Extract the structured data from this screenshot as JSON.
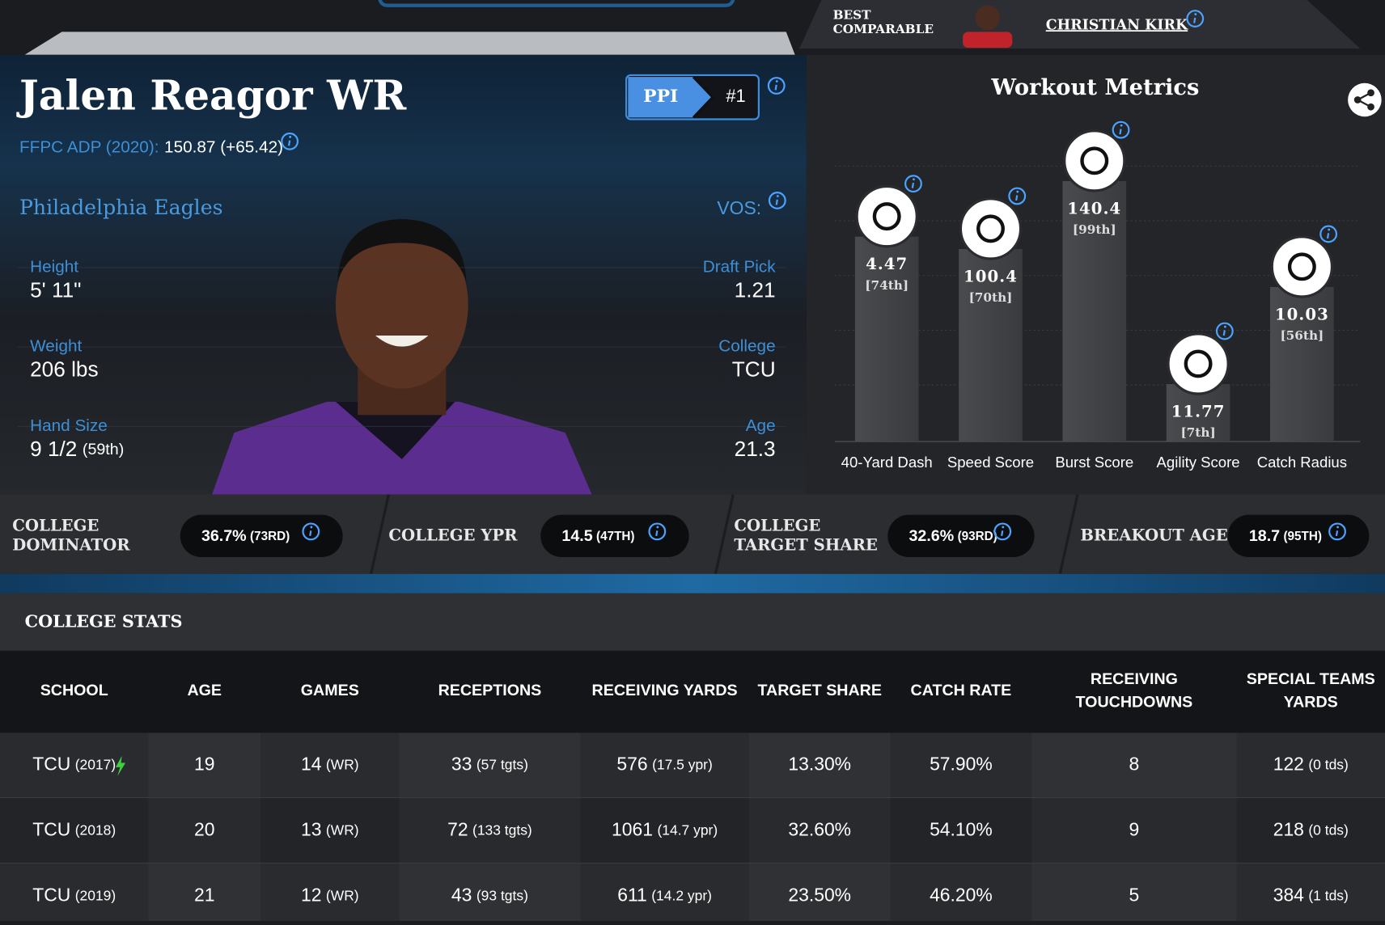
{
  "header": {
    "best_comparable": [
      "BEST",
      "COMPARABLE"
    ],
    "comparable_name": "CHRISTIAN KIRK"
  },
  "player": {
    "name": "Jalen Reagor WR",
    "ppi_label": "PPI",
    "ppi_rank": "#1",
    "adp_label": "FFPC ADP (2020):",
    "adp_value": "150.87 (+65.42)",
    "team": "Philadelphia Eagles",
    "vos_label": "VOS:",
    "left_attributes": [
      {
        "label": "Height",
        "value": "5' 11\""
      },
      {
        "label": "Weight",
        "value": "206 lbs"
      },
      {
        "label": "Hand Size",
        "value": "9 1/2",
        "sub": "(59th)"
      }
    ],
    "right_attributes": [
      {
        "label": "Draft Pick",
        "value": "1.21"
      },
      {
        "label": "College",
        "value": "TCU"
      },
      {
        "label": "Age",
        "value": "21.3"
      }
    ]
  },
  "workout": {
    "title": "Workout Metrics",
    "metrics": [
      {
        "name": "40-Yard Dash",
        "value": "4.47",
        "percentile": "[74th]"
      },
      {
        "name": "Speed Score",
        "value": "100.4",
        "percentile": "[70th]"
      },
      {
        "name": "Burst Score",
        "value": "140.4",
        "percentile": "[99th]"
      },
      {
        "name": "Agility Score",
        "value": "11.77",
        "percentile": "[7th]"
      },
      {
        "name": "Catch Radius",
        "value": "10.03",
        "percentile": "[56th]"
      }
    ]
  },
  "profile_metrics": [
    {
      "label": [
        "COLLEGE",
        "DOMINATOR"
      ],
      "value": "36.7%",
      "rank": "(73RD)"
    },
    {
      "label": [
        "COLLEGE YPR"
      ],
      "value": "14.5",
      "rank": "(47TH)"
    },
    {
      "label": [
        "COLLEGE",
        "TARGET SHARE"
      ],
      "value": "32.6%",
      "rank": "(93RD)"
    },
    {
      "label": [
        "BREAKOUT AGE"
      ],
      "value": "18.7",
      "rank": "(95TH)"
    }
  ],
  "college_stats": {
    "title": "COLLEGE STATS",
    "columns": [
      [
        "SCHOOL"
      ],
      [
        "AGE"
      ],
      [
        "GAMES"
      ],
      [
        "RECEPTIONS"
      ],
      [
        "RECEIVING YARDS"
      ],
      [
        "TARGET SHARE"
      ],
      [
        "CATCH RATE"
      ],
      [
        "RECEIVING",
        "TOUCHDOWNS"
      ],
      [
        "SPECIAL TEAMS",
        "YARDS"
      ]
    ],
    "rows": [
      [
        [
          "TCU",
          "(2017)"
        ],
        [
          19
        ],
        [
          14,
          "(WR)"
        ],
        [
          33,
          "(57 tgts)"
        ],
        [
          576,
          "(17.5 ypr)"
        ],
        [
          "13.30%"
        ],
        [
          "57.90%"
        ],
        [
          8
        ],
        [
          122,
          "(0 tds)"
        ]
      ],
      [
        [
          "TCU",
          "(2018)"
        ],
        [
          20
        ],
        [
          13,
          "(WR)"
        ],
        [
          72,
          "(133 tgts)"
        ],
        [
          1061,
          "(14.7 ypr)"
        ],
        [
          "32.60%"
        ],
        [
          "54.10%"
        ],
        [
          9
        ],
        [
          218,
          "(0 tds)"
        ]
      ],
      [
        [
          "TCU",
          "(2019)"
        ],
        [
          21
        ],
        [
          12,
          "(WR)"
        ],
        [
          43,
          "(93 tgts)"
        ],
        [
          611,
          "(14.2 ypr)"
        ],
        [
          "23.50%"
        ],
        [
          "46.20%"
        ],
        [
          5
        ],
        [
          384,
          "(1 tds)"
        ]
      ]
    ]
  }
}
